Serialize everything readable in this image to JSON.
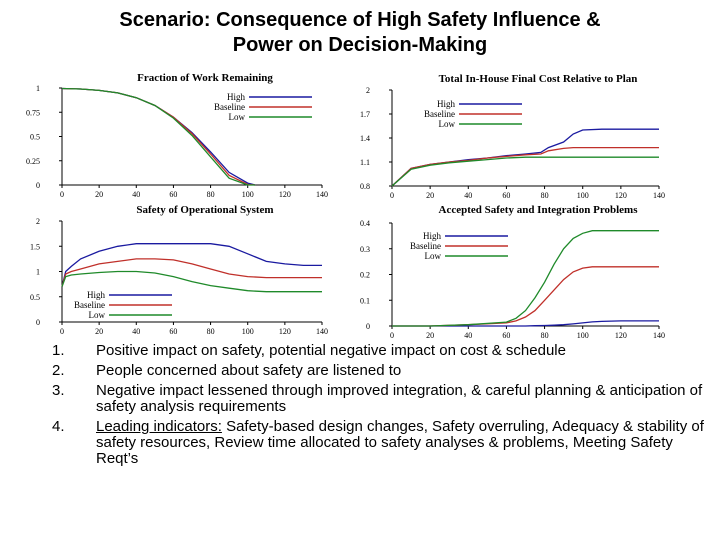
{
  "title_lines": [
    "Scenario: Consequence of High Safety Influence &",
    "Power on Decision-Making"
  ],
  "chart_data": [
    {
      "type": "line",
      "title": "Fraction of Work Remaining",
      "xlim": [
        0,
        140
      ],
      "ylim": [
        0,
        1
      ],
      "xticks": [
        "0",
        "20",
        "40",
        "60",
        "80",
        "100",
        "120",
        "140"
      ],
      "yticks": [
        "0",
        "0.25",
        "0.5",
        "0.75",
        "1"
      ],
      "legend_position": "top-right",
      "x": [
        0,
        10,
        20,
        30,
        40,
        50,
        60,
        70,
        80,
        90,
        100,
        104
      ],
      "series": [
        {
          "name": "High",
          "color": "#1a1aa0",
          "values": [
            0.995,
            0.99,
            0.975,
            0.95,
            0.9,
            0.82,
            0.7,
            0.54,
            0.34,
            0.13,
            0.02,
            0.0
          ]
        },
        {
          "name": "Baseline",
          "color": "#c0302a",
          "values": [
            0.995,
            0.99,
            0.975,
            0.95,
            0.9,
            0.82,
            0.7,
            0.53,
            0.32,
            0.1,
            0.005,
            0.0
          ]
        },
        {
          "name": "Low",
          "color": "#1f8a2a",
          "values": [
            0.995,
            0.99,
            0.975,
            0.95,
            0.9,
            0.82,
            0.69,
            0.51,
            0.29,
            0.07,
            0.0,
            0.0
          ]
        }
      ]
    },
    {
      "type": "line",
      "title": "Total In-House Final Cost Relative to Plan",
      "xlim": [
        0,
        140
      ],
      "ylim": [
        0.8,
        2
      ],
      "xticks": [
        "0",
        "20",
        "40",
        "60",
        "80",
        "100",
        "120",
        "140"
      ],
      "yticks": [
        "0.8",
        "1.1",
        "1.4",
        "1.7",
        "2"
      ],
      "legend_position": "top-left",
      "x": [
        0,
        10,
        20,
        30,
        40,
        50,
        60,
        70,
        78,
        82,
        90,
        95,
        100,
        110,
        120,
        130,
        140
      ],
      "series": [
        {
          "name": "High",
          "color": "#1a1aa0",
          "values": [
            0.8,
            1.02,
            1.07,
            1.1,
            1.13,
            1.15,
            1.18,
            1.2,
            1.22,
            1.28,
            1.35,
            1.45,
            1.5,
            1.51,
            1.51,
            1.51,
            1.51
          ]
        },
        {
          "name": "Baseline",
          "color": "#c0302a",
          "values": [
            0.8,
            1.02,
            1.07,
            1.1,
            1.12,
            1.15,
            1.17,
            1.19,
            1.2,
            1.24,
            1.27,
            1.28,
            1.28,
            1.28,
            1.28,
            1.28,
            1.28
          ]
        },
        {
          "name": "Low",
          "color": "#1f8a2a",
          "values": [
            0.8,
            1.01,
            1.06,
            1.09,
            1.11,
            1.13,
            1.15,
            1.16,
            1.16,
            1.16,
            1.16,
            1.16,
            1.16,
            1.16,
            1.16,
            1.16,
            1.16
          ]
        }
      ]
    },
    {
      "type": "line",
      "title": "Safety of Operational System",
      "xlim": [
        0,
        140
      ],
      "ylim": [
        0,
        2
      ],
      "xticks": [
        "0",
        "20",
        "40",
        "60",
        "80",
        "100",
        "120",
        "140"
      ],
      "yticks": [
        "0",
        "0.5",
        "1",
        "1.5",
        "2"
      ],
      "legend_position": "bottom-left",
      "x": [
        0,
        2,
        5,
        10,
        20,
        30,
        40,
        50,
        60,
        70,
        80,
        90,
        100,
        110,
        120,
        130,
        140
      ],
      "series": [
        {
          "name": "High",
          "color": "#1a1aa0",
          "values": [
            0.7,
            1.0,
            1.1,
            1.25,
            1.4,
            1.5,
            1.55,
            1.55,
            1.55,
            1.55,
            1.55,
            1.5,
            1.35,
            1.2,
            1.15,
            1.12,
            1.12
          ]
        },
        {
          "name": "Baseline",
          "color": "#c0302a",
          "values": [
            0.7,
            0.95,
            1.0,
            1.05,
            1.15,
            1.2,
            1.25,
            1.25,
            1.23,
            1.15,
            1.05,
            0.95,
            0.9,
            0.88,
            0.88,
            0.88,
            0.88
          ]
        },
        {
          "name": "Low",
          "color": "#1f8a2a",
          "values": [
            0.7,
            0.9,
            0.93,
            0.95,
            0.98,
            1.0,
            1.0,
            0.97,
            0.9,
            0.8,
            0.72,
            0.67,
            0.62,
            0.6,
            0.6,
            0.6,
            0.6
          ]
        }
      ]
    },
    {
      "type": "line",
      "title": "Accepted Safety and Integration Problems",
      "xlim": [
        0,
        140
      ],
      "ylim": [
        0,
        0.4
      ],
      "xticks": [
        "0",
        "20",
        "40",
        "60",
        "80",
        "100",
        "120",
        "140"
      ],
      "yticks": [
        "0",
        "0.1",
        "0.2",
        "0.3",
        "0.4"
      ],
      "legend_position": "top-left",
      "x": [
        0,
        20,
        40,
        60,
        65,
        70,
        75,
        80,
        85,
        90,
        95,
        100,
        105,
        110,
        120,
        130,
        140
      ],
      "series": [
        {
          "name": "High",
          "color": "#1a1aa0",
          "values": [
            0.0,
            0.0,
            0.0,
            0.0,
            0.0,
            0.0,
            0.001,
            0.002,
            0.003,
            0.005,
            0.008,
            0.012,
            0.016,
            0.018,
            0.02,
            0.02,
            0.02
          ]
        },
        {
          "name": "Baseline",
          "color": "#c0302a",
          "values": [
            0.0,
            0.0,
            0.005,
            0.012,
            0.02,
            0.035,
            0.06,
            0.1,
            0.14,
            0.18,
            0.21,
            0.225,
            0.23,
            0.23,
            0.23,
            0.23,
            0.23
          ]
        },
        {
          "name": "Low",
          "color": "#1f8a2a",
          "values": [
            0.0,
            0.0,
            0.005,
            0.015,
            0.03,
            0.06,
            0.11,
            0.17,
            0.24,
            0.3,
            0.34,
            0.36,
            0.37,
            0.37,
            0.37,
            0.37,
            0.37
          ]
        }
      ]
    }
  ],
  "points": [
    {
      "num": "1.",
      "text": "Positive impact on safety, potential negative impact on cost & schedule"
    },
    {
      "num": "2.",
      "text": "People concerned about safety are listened to"
    },
    {
      "num": "3.",
      "text": "Negative impact lessened through improved integration, & careful planning & anticipation of safety analysis requirements"
    },
    {
      "num": "4.",
      "lead": "Leading indicators:",
      "text": " Safety-based design changes, Safety overruling, Adequacy & stability of safety resources, Review time allocated to safety analyses & problems, Meeting Safety Reqt’s"
    }
  ]
}
